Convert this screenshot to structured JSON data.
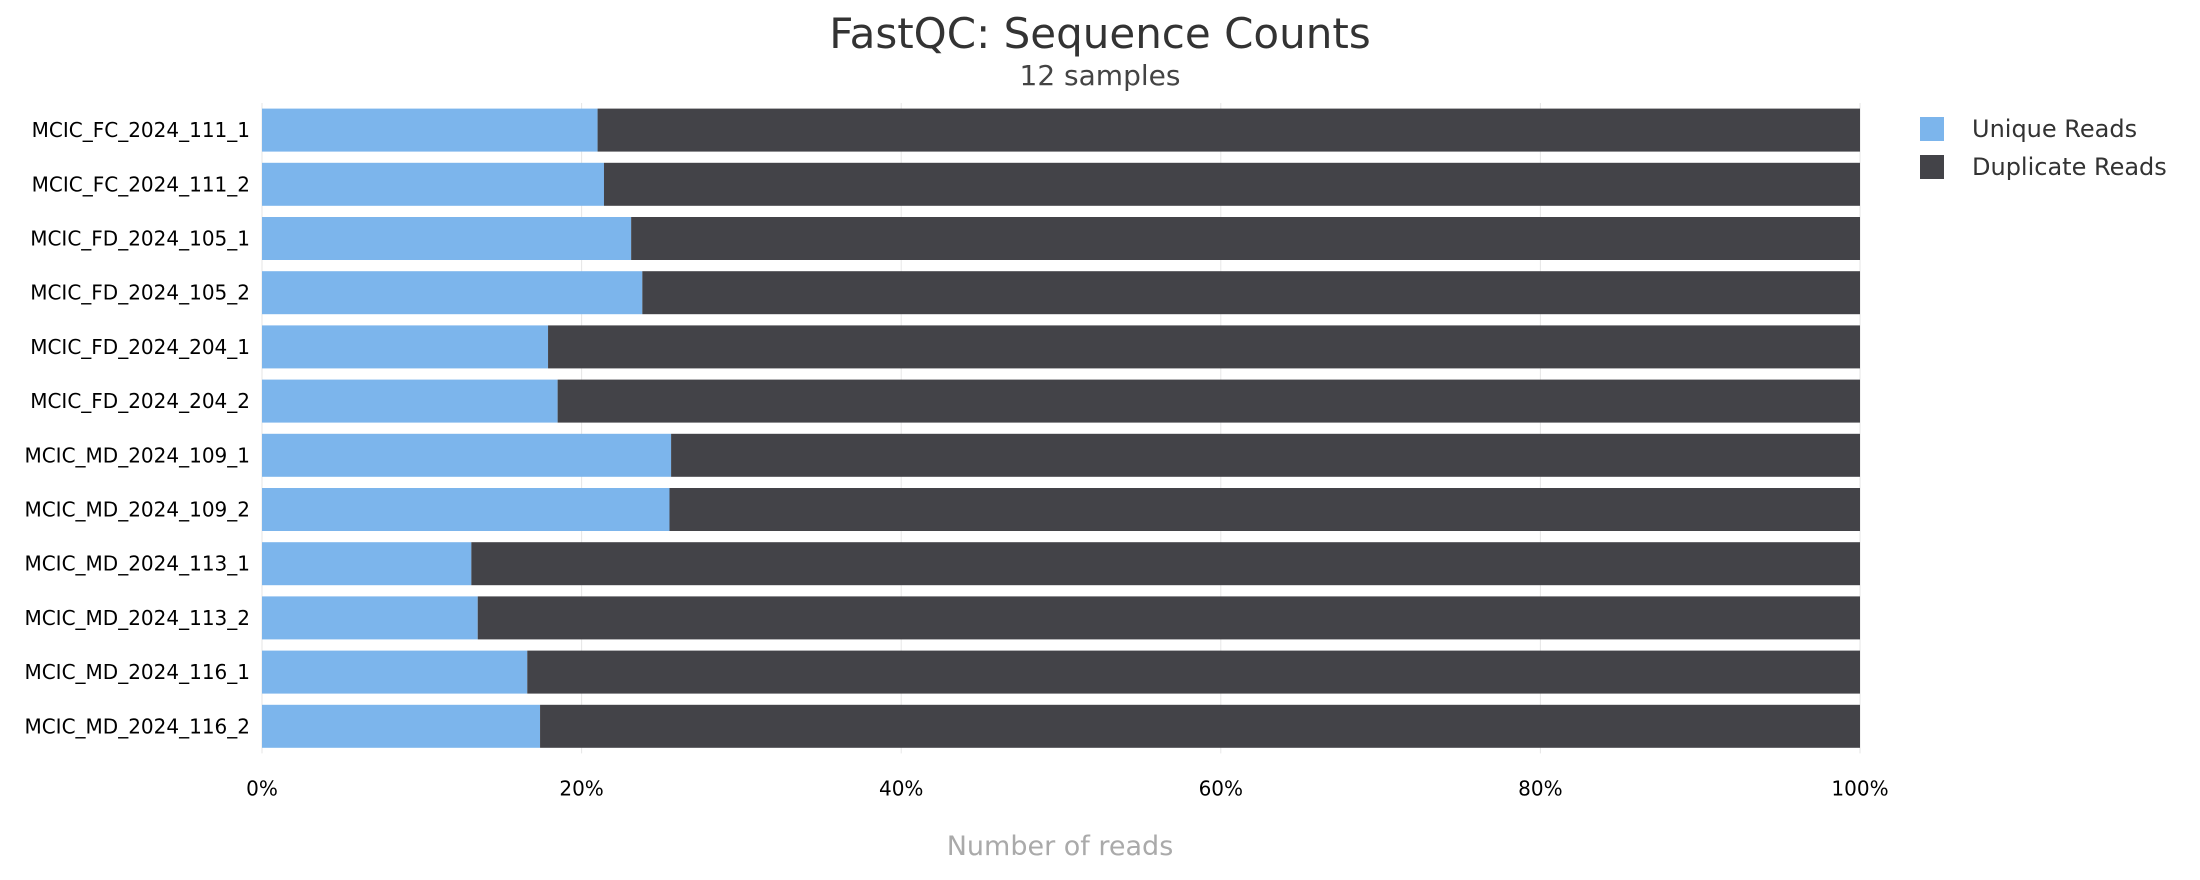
{
  "chart_data": {
    "type": "bar",
    "stacked": true,
    "orientation": "horizontal",
    "percent_scale": true,
    "title": "FastQC: Sequence Counts",
    "subtitle": "12 samples",
    "xlabel": "Number of reads",
    "xlim": [
      0,
      100
    ],
    "x_ticks": [
      "0%",
      "20%",
      "40%",
      "60%",
      "80%",
      "100%"
    ],
    "x_tick_values": [
      0,
      20,
      40,
      60,
      80,
      100
    ],
    "grid": "vertical",
    "legend_position": "right",
    "categories": [
      "MCIC_FC_2024_111_1",
      "MCIC_FC_2024_111_2",
      "MCIC_FD_2024_105_1",
      "MCIC_FD_2024_105_2",
      "MCIC_FD_2024_204_1",
      "MCIC_FD_2024_204_2",
      "MCIC_MD_2024_109_1",
      "MCIC_MD_2024_109_2",
      "MCIC_MD_2024_113_1",
      "MCIC_MD_2024_113_2",
      "MCIC_MD_2024_116_1",
      "MCIC_MD_2024_116_2"
    ],
    "series": [
      {
        "name": "Unique Reads",
        "color": "#7cb5ec",
        "values": [
          21.0,
          21.4,
          23.1,
          23.8,
          17.9,
          18.5,
          25.6,
          25.5,
          13.1,
          13.5,
          16.6,
          17.4
        ]
      },
      {
        "name": "Duplicate Reads",
        "color": "#434348",
        "values": [
          79.0,
          78.6,
          76.9,
          76.2,
          82.1,
          81.5,
          74.4,
          74.5,
          86.9,
          86.5,
          83.4,
          82.6
        ]
      }
    ]
  }
}
